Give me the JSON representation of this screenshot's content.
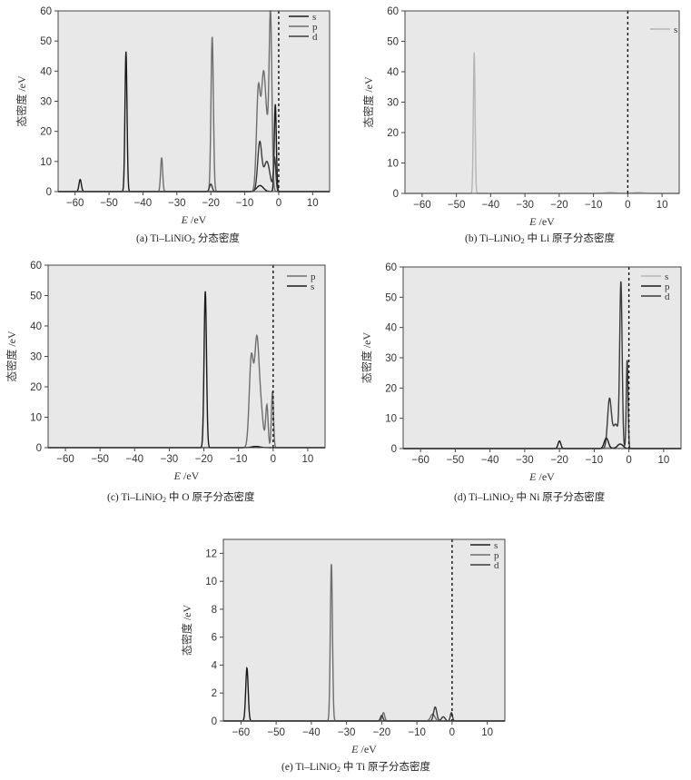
{
  "chart_data": [
    {
      "id": "a",
      "type": "line",
      "caption_pre": "(a) Ti–LiNiO",
      "caption_sub": "2",
      "caption_post": " 分态密度",
      "xlabel_italic": "E",
      "xlabel_unit": " /eV",
      "ylabel": "态密度 /eV",
      "xlim": [
        -65,
        15
      ],
      "ylim": [
        0,
        60
      ],
      "xticks": [
        -60,
        -50,
        -40,
        -30,
        -20,
        -10,
        0,
        10
      ],
      "yticks": [
        0,
        10,
        20,
        30,
        40,
        50,
        60
      ],
      "fermi_level": 0,
      "legend": [
        "s",
        "p",
        "d"
      ],
      "series": [
        {
          "name": "s",
          "color": "#1a1a1a",
          "peaks": [
            [
              -58.5,
              4.0,
              0.35
            ],
            [
              -45,
              46.5,
              0.3
            ],
            [
              -1.0,
              29.0,
              0.3
            ],
            [
              -5.5,
              2.0,
              1.0
            ]
          ]
        },
        {
          "name": "p",
          "color": "#6e6e6e",
          "peaks": [
            [
              -34.5,
              11.3,
              0.3
            ],
            [
              -19.6,
              51.5,
              0.35
            ],
            [
              -6.0,
              33.5,
              0.55
            ],
            [
              -4.6,
              29.0,
              0.6
            ],
            [
              -2.4,
              54.0,
              0.4
            ],
            [
              -3.6,
              20.0,
              0.8
            ]
          ]
        },
        {
          "name": "d",
          "color": "#3a3a3a",
          "peaks": [
            [
              -20,
              2.5,
              0.4
            ],
            [
              -5.6,
              16.0,
              0.6
            ],
            [
              -3.5,
              10.0,
              0.9
            ],
            [
              -1.2,
              11.0,
              0.35
            ]
          ]
        }
      ]
    },
    {
      "id": "b",
      "type": "line",
      "caption_pre": "(b) Ti–LiNiO",
      "caption_sub": "2",
      "caption_post": " 中 Li 原子分态密度",
      "xlabel_italic": "E",
      "xlabel_unit": " /eV",
      "ylabel": "态密度 /eV",
      "xlim": [
        -65,
        15
      ],
      "ylim": [
        0,
        60
      ],
      "xticks": [
        -60,
        -50,
        -40,
        -30,
        -20,
        -10,
        0,
        10
      ],
      "yticks": [
        0,
        10,
        20,
        30,
        40,
        50,
        60
      ],
      "fermi_level": 0,
      "legend": [
        "s"
      ],
      "series": [
        {
          "name": "s",
          "color": "#b5b5b5",
          "peaks": [
            [
              -44.8,
              46.5,
              0.25
            ],
            [
              -5,
              0.3,
              1.5
            ],
            [
              3,
              0.3,
              1.5
            ]
          ]
        }
      ]
    },
    {
      "id": "c",
      "type": "line",
      "caption_pre": "(c) Ti–LiNiO",
      "caption_sub": "2",
      "caption_post": " 中 O 原子分态密度",
      "xlabel_italic": "E",
      "xlabel_unit": " /eV",
      "ylabel": "态密度 /eV",
      "xlim": [
        -65,
        15
      ],
      "ylim": [
        0,
        60
      ],
      "xticks": [
        -60,
        -50,
        -40,
        -30,
        -20,
        -10,
        0,
        10
      ],
      "yticks": [
        0,
        10,
        20,
        30,
        40,
        50,
        60
      ],
      "fermi_level": 0,
      "legend": [
        "p",
        "s"
      ],
      "series": [
        {
          "name": "p",
          "color": "#6e6e6e",
          "peaks": [
            [
              -6.3,
              29.5,
              0.6
            ],
            [
              -4.8,
              28.5,
              0.6
            ],
            [
              -3.8,
              15.0,
              0.8
            ],
            [
              -1.8,
              13.5,
              0.35
            ],
            [
              -0.2,
              18.5,
              0.3
            ]
          ]
        },
        {
          "name": "s",
          "color": "#1a1a1a",
          "peaks": [
            [
              -19.6,
              51.5,
              0.35
            ],
            [
              -5,
              0.4,
              1.2
            ]
          ]
        }
      ]
    },
    {
      "id": "d",
      "type": "line",
      "caption_pre": "(d) Ti–LiNiO",
      "caption_sub": "2",
      "caption_post": " 中 Ni 原子分态密度",
      "xlabel_italic": "E",
      "xlabel_unit": " /eV",
      "ylabel": "态密度 /eV",
      "xlim": [
        -65,
        15
      ],
      "ylim": [
        0,
        60
      ],
      "xticks": [
        -60,
        -50,
        -40,
        -30,
        -20,
        -10,
        0,
        10
      ],
      "yticks": [
        0,
        10,
        20,
        30,
        40,
        50,
        60
      ],
      "fermi_level": 0,
      "legend": [
        "s",
        "p",
        "d"
      ],
      "series": [
        {
          "name": "s",
          "color": "#b5b5b5",
          "peaks": [
            [
              -5,
              0.4,
              1.5
            ]
          ]
        },
        {
          "name": "p",
          "color": "#1a1a1a",
          "peaks": [
            [
              -20,
              2.5,
              0.4
            ],
            [
              -6.5,
              3.5,
              0.6
            ],
            [
              -2.5,
              1.5,
              0.8
            ]
          ]
        },
        {
          "name": "d",
          "color": "#3a3a3a",
          "peaks": [
            [
              -5.6,
              16.0,
              0.55
            ],
            [
              -3.8,
              8.0,
              0.8
            ],
            [
              -2.3,
              54.0,
              0.35
            ],
            [
              -0.5,
              29.5,
              0.25
            ]
          ]
        }
      ]
    },
    {
      "id": "e",
      "type": "line",
      "caption_pre": "(e) Ti–LiNiO",
      "caption_sub": "2",
      "caption_post": " 中 Ti 原子分态密度",
      "xlabel_italic": "E",
      "xlabel_unit": " /eV",
      "ylabel": "态密度 /eV",
      "xlim": [
        -65,
        15
      ],
      "ylim": [
        0,
        13
      ],
      "xticks": [
        -60,
        -50,
        -40,
        -30,
        -20,
        -10,
        0,
        10
      ],
      "yticks": [
        0,
        2,
        4,
        6,
        8,
        10,
        12
      ],
      "fermi_level": 0,
      "legend": [
        "s",
        "p",
        "d"
      ],
      "series": [
        {
          "name": "s",
          "color": "#1a1a1a",
          "peaks": [
            [
              -58.3,
              3.8,
              0.35
            ]
          ]
        },
        {
          "name": "p",
          "color": "#6e6e6e",
          "peaks": [
            [
              -34.3,
              11.3,
              0.3
            ],
            [
              -19.5,
              0.6,
              0.35
            ],
            [
              -5.5,
              0.5,
              0.6
            ]
          ]
        },
        {
          "name": "d",
          "color": "#3a3a3a",
          "peaks": [
            [
              -20,
              0.4,
              0.35
            ],
            [
              -4.8,
              1.0,
              0.45
            ],
            [
              -2.5,
              0.3,
              0.5
            ],
            [
              -0.2,
              0.6,
              0.3
            ]
          ]
        }
      ]
    }
  ]
}
